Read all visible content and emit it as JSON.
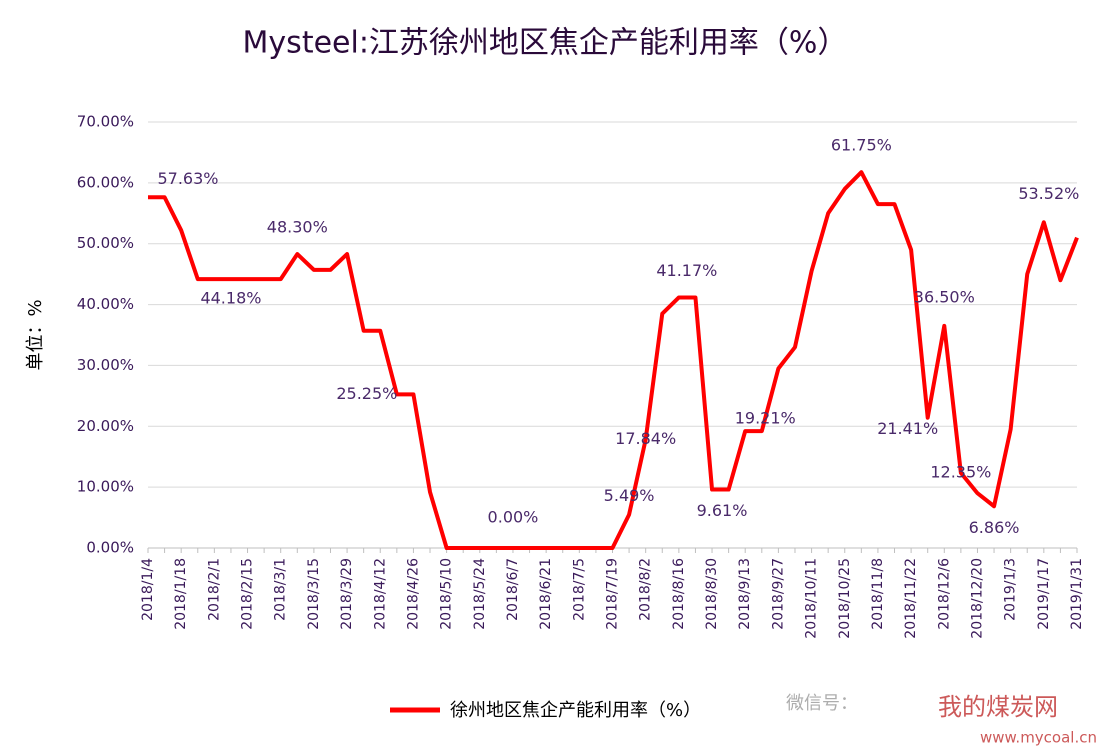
{
  "chart_data": {
    "type": "line",
    "title": "Mysteel:江苏徐州地区焦企产能利用率（%）",
    "y_label": "单位：%",
    "categories": [
      "2018/1/4",
      null,
      "2018/1/18",
      null,
      "2018/2/1",
      null,
      "2018/2/15",
      null,
      "2018/3/1",
      null,
      "2018/3/15",
      null,
      "2018/3/29",
      null,
      "2018/4/12",
      null,
      "2018/4/26",
      null,
      "2018/5/10",
      null,
      "2018/5/24",
      null,
      "2018/6/7",
      null,
      "2018/6/21",
      null,
      "2018/7/5",
      null,
      "2018/7/19",
      null,
      "2018/8/2",
      null,
      "2018/8/16",
      null,
      "2018/8/30",
      null,
      "2018/9/13",
      null,
      "2018/9/27",
      null,
      "2018/10/11",
      null,
      "2018/10/25",
      null,
      "2018/11/8",
      null,
      "2018/11/22",
      null,
      "2018/12/6",
      null,
      "2018/12/20",
      null,
      "2019/1/3",
      null,
      "2019/1/17",
      null,
      "2019/1/31"
    ],
    "series": [
      {
        "name": "徐州地区焦企产能利用率（%）",
        "color": "#ff0000",
        "values": [
          57.63,
          57.63,
          52.2,
          44.18,
          44.18,
          44.18,
          44.18,
          44.18,
          44.18,
          48.3,
          45.7,
          45.7,
          48.3,
          35.7,
          35.7,
          25.25,
          25.25,
          9.2,
          0,
          0,
          0,
          0,
          0,
          0,
          0,
          0,
          0,
          0,
          0,
          5.49,
          17.84,
          38.5,
          41.17,
          41.17,
          9.61,
          9.61,
          19.21,
          19.21,
          29.5,
          33,
          45.5,
          55,
          59,
          61.75,
          56.5,
          56.5,
          49,
          21.41,
          36.5,
          12.35,
          9,
          6.86,
          19.5,
          45,
          53.52,
          44,
          51
        ],
        "value_labels": [
          "57.63%",
          null,
          null,
          null,
          null,
          "44.18%",
          null,
          null,
          null,
          "48.30%",
          null,
          null,
          null,
          null,
          null,
          "25.25%",
          null,
          null,
          null,
          null,
          null,
          null,
          "0.00%",
          null,
          null,
          null,
          null,
          null,
          null,
          "5.49%",
          "17.84%",
          null,
          "41.17%",
          null,
          "9.61%",
          null,
          "19.21%",
          null,
          null,
          null,
          null,
          null,
          null,
          "61.75%",
          null,
          null,
          null,
          "21.41%",
          "36.50%",
          "12.35%",
          null,
          "6.86%",
          null,
          null,
          "53.52%",
          null,
          null
        ]
      }
    ],
    "ylim": [
      0,
      70
    ],
    "yticks": [
      {
        "value": 0,
        "label": "0.00%"
      },
      {
        "value": 10,
        "label": "10.00%"
      },
      {
        "value": 20,
        "label": "20.00%"
      },
      {
        "value": 30,
        "label": "30.00%"
      },
      {
        "value": 40,
        "label": "40.00%"
      },
      {
        "value": 50,
        "label": "50.00%"
      },
      {
        "value": 60,
        "label": "60.00%"
      },
      {
        "value": 70,
        "label": "70.00%"
      }
    ],
    "grid": true,
    "legend": "bottom",
    "annotations": [
      "微信号：",
      "我的煤炭网",
      "www.mycoal.cn"
    ]
  }
}
